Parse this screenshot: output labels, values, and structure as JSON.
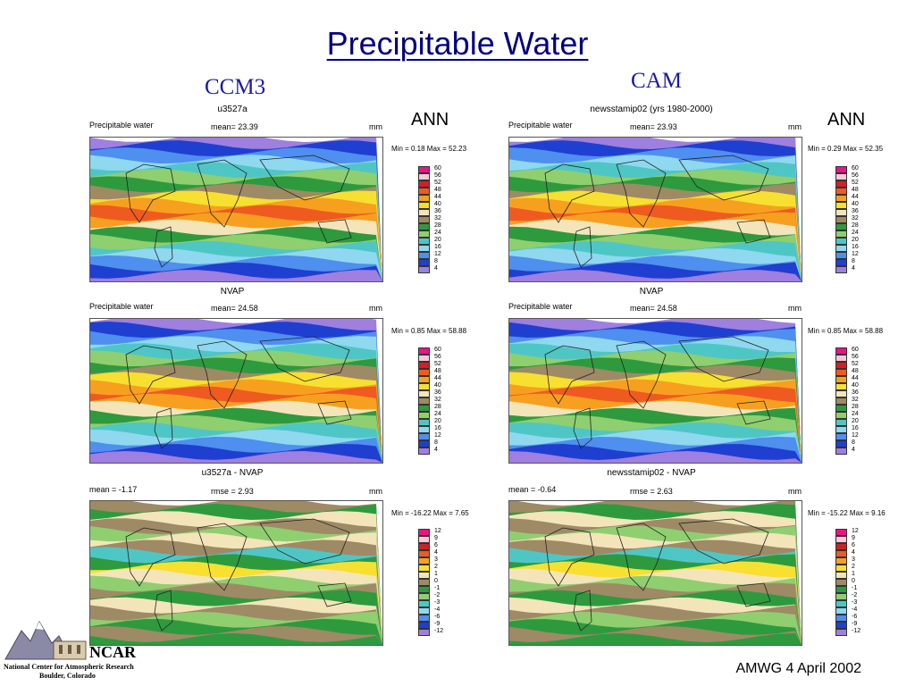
{
  "slide": {
    "title": "Precipitable Water",
    "col_left": "CCM3",
    "col_right": "CAM",
    "footer": "AMWG 4 April 2002",
    "logo": {
      "name": "NCAR",
      "line1": "National Center for Atmospheric Research",
      "line2": "Boulder, Colorado"
    }
  },
  "panels": [
    {
      "title": "u3527a",
      "left_label": "Precipitable water",
      "center_label": "mean= 23.39",
      "unit": "mm",
      "season": "ANN",
      "minmax": "Min = 0.18 Max = 52.23",
      "kind": "abs"
    },
    {
      "title": "newsstamip02 (yrs 1980-2000)",
      "left_label": "Precipitable water",
      "center_label": "mean= 23.93",
      "unit": "mm",
      "season": "ANN",
      "minmax": "Min = 0.29 Max = 52.35",
      "kind": "abs"
    },
    {
      "title": "NVAP",
      "left_label": "Precipitable water",
      "center_label": "mean= 24.58",
      "unit": "mm",
      "season": "",
      "minmax": "Min = 0.85 Max = 58.88",
      "kind": "abs"
    },
    {
      "title": "NVAP",
      "left_label": "Precipitable water",
      "center_label": "mean= 24.58",
      "unit": "mm",
      "season": "",
      "minmax": "Min = 0.85 Max = 58.88",
      "kind": "abs"
    },
    {
      "title": "u3527a - NVAP",
      "left_label": "mean = -1.17",
      "center_label": "rmse = 2.93",
      "unit": "mm",
      "season": "",
      "minmax": "Min = -16.22 Max = 7.65",
      "kind": "diff"
    },
    {
      "title": "newsstamip02 - NVAP",
      "left_label": "mean = -0.64",
      "center_label": "rmse = 2.63",
      "unit": "mm",
      "season": "",
      "minmax": "Min = -15.22 Max = 9.16",
      "kind": "diff"
    }
  ],
  "legend_abs": {
    "labels": [
      "60",
      "56",
      "52",
      "48",
      "44",
      "40",
      "36",
      "32",
      "28",
      "24",
      "20",
      "16",
      "12",
      "8",
      "4"
    ],
    "colors": [
      "#ee1188",
      "#f9c7d8",
      "#d22020",
      "#ef5a20",
      "#f7a020",
      "#f7e030",
      "#f3e5b9",
      "#9f8a66",
      "#2e9a3e",
      "#8fcf6f",
      "#4fc6c6",
      "#8fd8ef",
      "#4f8fef",
      "#1f3fd0",
      "#9f7fdf"
    ]
  },
  "legend_diff": {
    "labels": [
      "12",
      "9",
      "6",
      "4",
      "3",
      "2",
      "1",
      "0",
      "-1",
      "-2",
      "-3",
      "-4",
      "-6",
      "-9",
      "-12"
    ],
    "colors": [
      "#ee1188",
      "#f9c7d8",
      "#d22020",
      "#ef5a20",
      "#f7a020",
      "#f7e030",
      "#f3e5b9",
      "#9f8a66",
      "#2e9a3e",
      "#8fcf6f",
      "#4fc6c6",
      "#8fd8ef",
      "#4f8fef",
      "#1f3fd0",
      "#9f7fdf"
    ]
  }
}
